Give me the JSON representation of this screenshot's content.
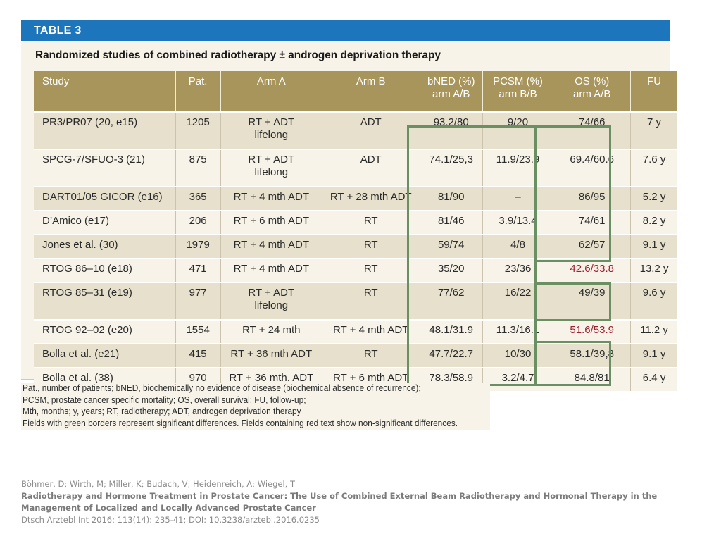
{
  "table_label": "TABLE 3",
  "table_title": "Randomized studies of combined radiotherapy ± androgen deprivation therapy",
  "columns": [
    {
      "line1": "Study",
      "line2": ""
    },
    {
      "line1": "Pat.",
      "line2": ""
    },
    {
      "line1": "Arm A",
      "line2": ""
    },
    {
      "line1": "Arm B",
      "line2": ""
    },
    {
      "line1": "bNED (%)",
      "line2": "arm A/B"
    },
    {
      "line1": "PCSM (%)",
      "line2": "arm B/B"
    },
    {
      "line1": "OS (%)",
      "line2": "arm A/B"
    },
    {
      "line1": "FU",
      "line2": ""
    }
  ],
  "rows": [
    {
      "study": "PR3/PR07 (20, e15)",
      "pat": "1205",
      "arm_a": "RT + ADT",
      "arm_a2": "lifelong",
      "arm_b": "ADT",
      "bned": "93.2/80",
      "pcsm": "9/20",
      "os": "74/66",
      "fu": "7 y",
      "os_red": false
    },
    {
      "study": "SPCG-7/SFUO-3 (21)",
      "pat": "875",
      "arm_a": "RT + ADT",
      "arm_a2": "lifelong",
      "arm_b": "ADT",
      "bned": "74.1/25,3",
      "pcsm": "11.9/23.9",
      "os": "69.4/60.6",
      "fu": "7.6 y",
      "os_red": false
    },
    {
      "study": "DART01/05 GICOR (e16)",
      "pat": "365",
      "arm_a": "RT + 4 mth ADT",
      "arm_a2": "",
      "arm_b": "RT + 28 mth ADT",
      "bned": "81/90",
      "pcsm": "–",
      "os": "86/95",
      "fu": "5.2 y",
      "os_red": false
    },
    {
      "study": "D’Amico (e17)",
      "pat": "206",
      "arm_a": "RT + 6 mth ADT",
      "arm_a2": "",
      "arm_b": "RT",
      "bned": "81/46",
      "pcsm": "3.9/13.4",
      "os": "74/61",
      "fu": "8.2 y",
      "os_red": false
    },
    {
      "study": "Jones et al. (30)",
      "pat": "1979",
      "arm_a": "RT + 4 mth ADT",
      "arm_a2": "",
      "arm_b": "RT",
      "bned": "59/74",
      "pcsm": "4/8",
      "os": "62/57",
      "fu": "9.1 y",
      "os_red": false
    },
    {
      "study": "RTOG 86–10 (e18)",
      "pat": "471",
      "arm_a": "RT + 4 mth ADT",
      "arm_a2": "",
      "arm_b": "RT",
      "bned": "35/20",
      "pcsm": "23/36",
      "os": "42.6/33.8",
      "fu": "13.2 y",
      "os_red": true
    },
    {
      "study": "RTOG 85–31 (e19)",
      "pat": "977",
      "arm_a": "RT + ADT",
      "arm_a2": "lifelong",
      "arm_b": "RT",
      "bned": "77/62",
      "pcsm": "16/22",
      "os": "49/39",
      "fu": "9.6 y",
      "os_red": false
    },
    {
      "study": "RTOG 92–02 (e20)",
      "pat": "1554",
      "arm_a": "RT + 24 mth",
      "arm_a2": "",
      "arm_b": "RT + 4 mth ADT",
      "bned": "48.1/31.9",
      "pcsm": "11.3/16.1",
      "os": "51.6/53.9",
      "fu": "11.2 y",
      "os_red": true
    },
    {
      "study": "Bolla et al. (e21)",
      "pat": "415",
      "arm_a": "RT + 36 mth ADT",
      "arm_a2": "",
      "arm_b": "RT",
      "bned": "47.7/22.7",
      "pcsm": "10/30",
      "os": "58.1/39,8",
      "fu": "9.1 y",
      "os_red": false
    },
    {
      "study": "Bolla et al. (38)",
      "pat": "970",
      "arm_a": "RT + 36 mth. ADT",
      "arm_a2": "",
      "arm_b": "RT + 6 mth ADT",
      "bned": "78.3/58.9",
      "pcsm": "3.2/4.7",
      "os": "84.8/81",
      "fu": "6.4 y",
      "os_red": false
    }
  ],
  "footnotes": [
    "Pat., number of patients; bNED, biochemically no evidence of disease (biochemical absence of recurrence);",
    "PCSM, prostate cancer specific mortality; OS, overall survival; FU, follow-up;",
    "Mth, months; y, years; RT, radiotherapy; ADT, androgen deprivation therapy",
    "Fields with green borders represent significant differences. Fields containing red text show non-significant differences."
  ],
  "citation": {
    "authors": "Böhmer, D; Wirth, M; Miller, K; Budach, V; Heidenreich, A; Wiegel, T",
    "title": "Radiotherapy and Hormone Treatment in Prostate Cancer: The Use of Combined External Beam Radiotherapy and Hormonal Therapy in the Management of Localized and Locally Advanced Prostate Cancer",
    "source": "Dtsch Arztebl Int 2016; 113(14): 235-41; DOI: 10.3238/arztebl.2016.0235"
  },
  "colors": {
    "header_blue": "#1d76bb",
    "column_header": "#a8955c",
    "significant_border": "#6a8f63",
    "nonsignificant_text": "#9c1f2e"
  }
}
